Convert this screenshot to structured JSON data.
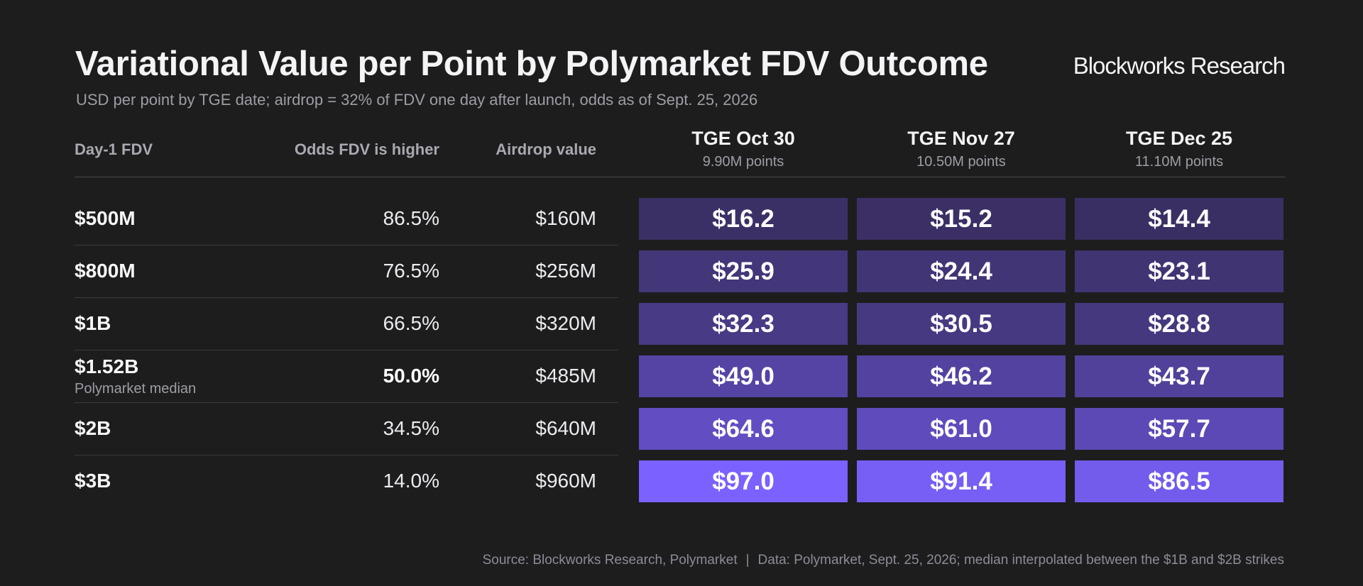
{
  "header": {
    "title": "Variational Value per Point by Polymarket FDV Outcome",
    "subtitle": "USD per point by TGE date; airdrop = 32% of FDV one day after launch, odds as of Sept. 25, 2026",
    "brand": "Blockworks Research"
  },
  "columns": {
    "fdv": "Day-1 FDV",
    "odds": "Odds FDV is higher",
    "airdrop": "Airdrop value"
  },
  "footer": {
    "source": "Source: Blockworks Research, Polymarket",
    "separator": "|",
    "data_note": "Data: Polymarket, Sept. 25, 2026; median interpolated between the $1B and $2B strikes"
  },
  "colors": {
    "background": "#1d1d1e",
    "cell_low": "#3a2f63",
    "cell_high": "#7b61ff"
  },
  "chart_data": {
    "type": "table",
    "tge_columns": [
      {
        "title": "TGE Oct 30",
        "subtitle": "9.90M points"
      },
      {
        "title": "TGE Nov 27",
        "subtitle": "10.50M points"
      },
      {
        "title": "TGE Dec 25",
        "subtitle": "11.10M points"
      }
    ],
    "rows": [
      {
        "fdv": "$500M",
        "note": "",
        "odds": "86.5%",
        "odds_bold": false,
        "airdrop": "$160M",
        "values": [
          "$16.2",
          "$15.2",
          "$14.4"
        ],
        "numeric": [
          16.2,
          15.2,
          14.4
        ]
      },
      {
        "fdv": "$800M",
        "note": "",
        "odds": "76.5%",
        "odds_bold": false,
        "airdrop": "$256M",
        "values": [
          "$25.9",
          "$24.4",
          "$23.1"
        ],
        "numeric": [
          25.9,
          24.4,
          23.1
        ]
      },
      {
        "fdv": "$1B",
        "note": "",
        "odds": "66.5%",
        "odds_bold": false,
        "airdrop": "$320M",
        "values": [
          "$32.3",
          "$30.5",
          "$28.8"
        ],
        "numeric": [
          32.3,
          30.5,
          28.8
        ]
      },
      {
        "fdv": "$1.52B",
        "note": "Polymarket median",
        "odds": "50.0%",
        "odds_bold": true,
        "airdrop": "$485M",
        "values": [
          "$49.0",
          "$46.2",
          "$43.7"
        ],
        "numeric": [
          49.0,
          46.2,
          43.7
        ]
      },
      {
        "fdv": "$2B",
        "note": "",
        "odds": "34.5%",
        "odds_bold": false,
        "airdrop": "$640M",
        "values": [
          "$64.6",
          "$61.0",
          "$57.7"
        ],
        "numeric": [
          64.6,
          61.0,
          57.7
        ]
      },
      {
        "fdv": "$3B",
        "note": "",
        "odds": "14.0%",
        "odds_bold": false,
        "airdrop": "$960M",
        "values": [
          "$97.0",
          "$91.4",
          "$86.5"
        ],
        "numeric": [
          97.0,
          91.4,
          86.5
        ]
      }
    ]
  }
}
